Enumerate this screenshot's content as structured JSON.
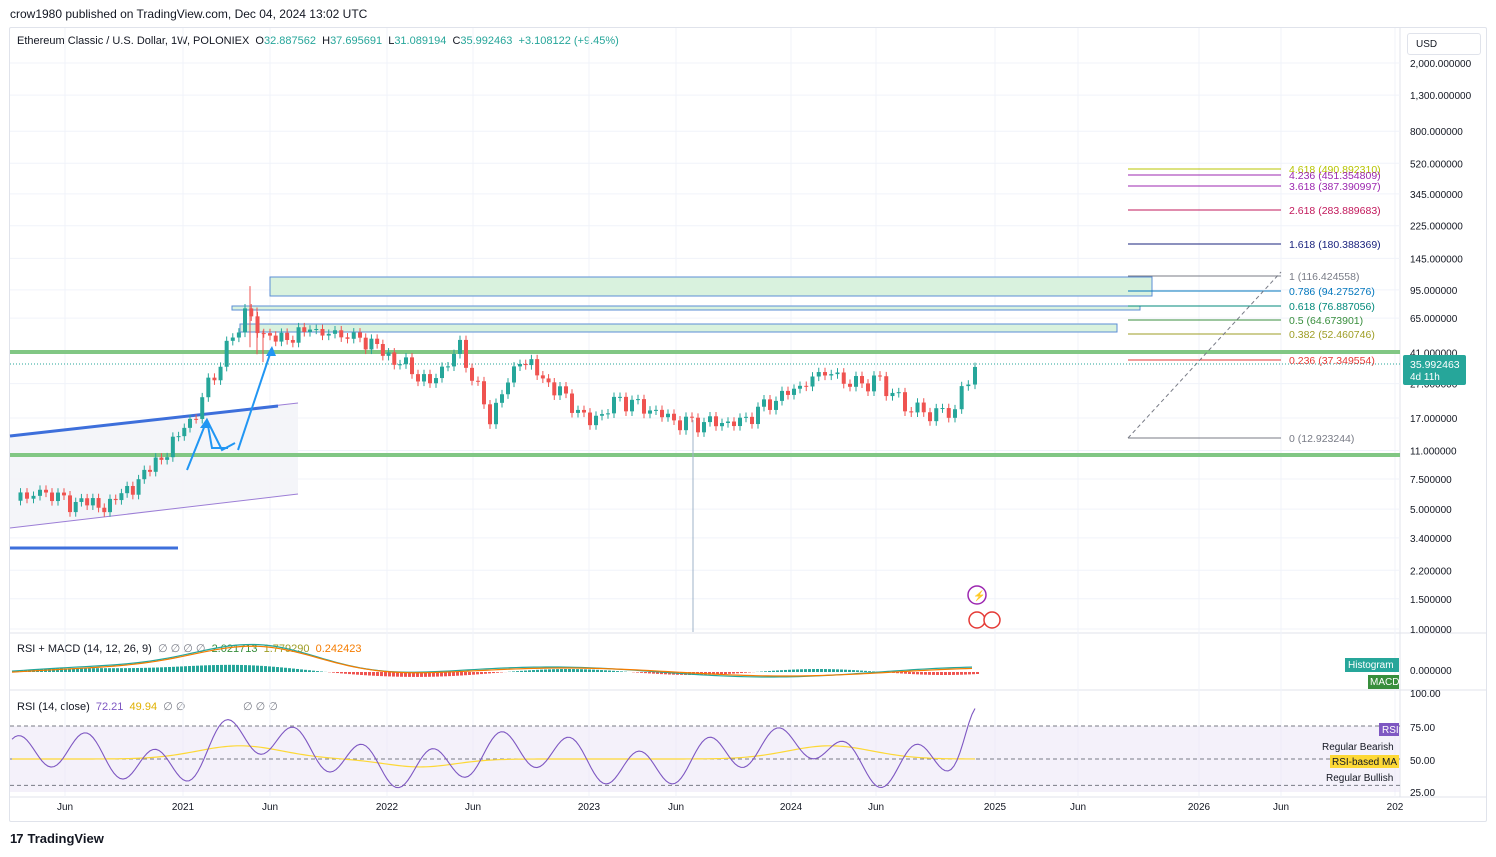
{
  "publisher": "crow1980 published on TradingView.com, Dec 04, 2024 13:02 UTC",
  "brand": "TradingView",
  "currency_button": "USD",
  "header": {
    "symbol": "Ethereum Classic / U.S. Dollar, 1W, POLONIEX",
    "o_label": "O",
    "o_value": "32.887562",
    "h_label": "H",
    "h_value": "37.695691",
    "l_label": "L",
    "l_value": "31.089194",
    "c_label": "C",
    "c_value": "35.992463",
    "change": "+3.108122 (+9.45%)"
  },
  "price_axis": {
    "ticks": [
      "2,000.000000",
      "1,300.000000",
      "800.000000",
      "520.000000",
      "345.000000",
      "225.000000",
      "145.000000",
      "95.000000",
      "65.000000",
      "41.000000",
      "27.000000",
      "17.000000",
      "11.000000",
      "7.500000",
      "5.000000",
      "3.400000",
      "2.200000",
      "1.500000",
      "1.000000"
    ],
    "last_price": "35.992463",
    "countdown": "4d 11h"
  },
  "time_axis": [
    "Jun",
    "2021",
    "Jun",
    "2022",
    "Jun",
    "2023",
    "Jun",
    "2024",
    "Jun",
    "2025",
    "Jun",
    "2026",
    "Jun",
    "202"
  ],
  "fib_levels": [
    {
      "label": "4.618 (490.892310)",
      "color": "#b8c400"
    },
    {
      "label": "4.236 (451.354809)",
      "color": "#9c27b0"
    },
    {
      "label": "3.618 (387.390997)",
      "color": "#9c27b0"
    },
    {
      "label": "2.618 (283.889683)",
      "color": "#c2185b"
    },
    {
      "label": "1.618 (180.388369)",
      "color": "#1a237e"
    },
    {
      "label": "1 (116.424558)",
      "color": "#787b86"
    },
    {
      "label": "0.786 (94.275276)",
      "color": "#0277bd"
    },
    {
      "label": "0.618 (76.887056)",
      "color": "#00897b"
    },
    {
      "label": "0.5 (64.673901)",
      "color": "#388e3c"
    },
    {
      "label": "0.382 (52.460746)",
      "color": "#9e9d24"
    },
    {
      "label": "0.236 (37.349554)",
      "color": "#e53935"
    },
    {
      "label": "0 (12.923244)",
      "color": "#787b86"
    }
  ],
  "macd": {
    "title": "RSI + MACD (14, 12, 26, 9)",
    "placeholders": "∅ ∅ ∅ ∅",
    "v1": "2.021713",
    "v2": "1.779290",
    "v3": "0.242423",
    "axis_value": "0.000000",
    "tag_histogram": "Histogram",
    "tag_macd": "MACD"
  },
  "rsi": {
    "title": "RSI (14, close)",
    "v1": "72.21",
    "v2": "49.94",
    "placeholders": "∅ ∅",
    "overflow_placeholders": "∅ ∅ ∅",
    "axis": [
      "100.00",
      "75.00",
      "50.00",
      "25.00"
    ],
    "tag_rsi": "RSI",
    "tag_bearish": "Regular Bearish",
    "tag_ma": "RSI-based MA",
    "tag_bullish": "Regular Bullish"
  },
  "colors": {
    "up": "#26a69a",
    "down": "#ef5350",
    "rsi": "#7e57c2",
    "rsi_ma": "#fdd835",
    "green_zone": "#81c784",
    "blue_line": "#3d6fdb"
  },
  "chart_data": {
    "type": "candlestick",
    "symbol": "ETC/USD",
    "interval": "1W",
    "scale": "log",
    "ylim": [
      1.0,
      2000.0
    ],
    "x": [
      "2020-04",
      "2020-06",
      "2020-09",
      "2020-12",
      "2021-02",
      "2021-04",
      "2021-05",
      "2021-06",
      "2021-08",
      "2021-10",
      "2021-12",
      "2022-02",
      "2022-04",
      "2022-06",
      "2022-08",
      "2022-10",
      "2022-12",
      "2023-02",
      "2023-04",
      "2023-06",
      "2023-08",
      "2023-10",
      "2023-12",
      "2024-02",
      "2024-03",
      "2024-05",
      "2024-07",
      "2024-08",
      "2024-10",
      "2024-11",
      "2024-12"
    ],
    "close": [
      5.6,
      6.4,
      5.5,
      5.3,
      8.5,
      16,
      70,
      48,
      55,
      50,
      36,
      27,
      44,
      17,
      38,
      24,
      16,
      22,
      19,
      16,
      16,
      16,
      21,
      26,
      32,
      27,
      28,
      20,
      18,
      19,
      36
    ],
    "last": {
      "open": 32.887562,
      "high": 37.695691,
      "low": 31.089194,
      "close": 35.992463
    }
  }
}
